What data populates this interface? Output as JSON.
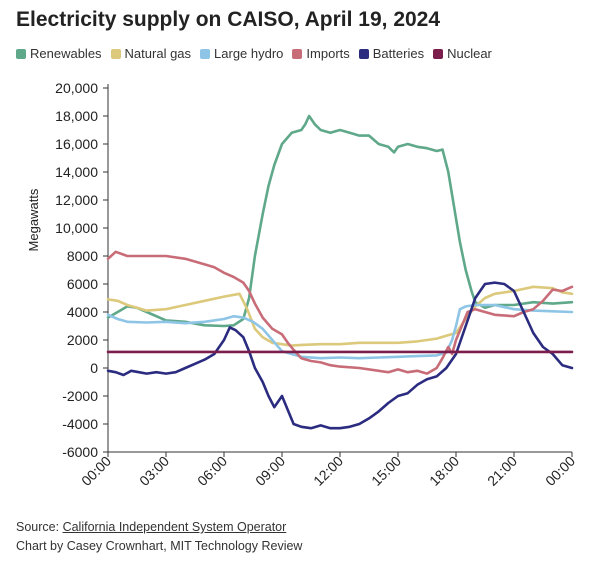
{
  "title": "Electricity supply on CAISO, April 19, 2024",
  "source_prefix": "Source: ",
  "source_link": "California Independent System Operator",
  "credit": "Chart by Casey Crownhart, MIT Technology Review",
  "chart_data": {
    "type": "line",
    "ylabel": "Megawatts",
    "xlabel": "",
    "ylim": [
      -6000,
      20000
    ],
    "xlim": [
      0,
      24
    ],
    "grid": false,
    "legend": "top-left",
    "yticks": [
      20000,
      18000,
      16000,
      14000,
      12000,
      10000,
      8000,
      6000,
      4000,
      2000,
      0,
      -2000,
      -4000,
      -6000
    ],
    "ytick_labels": [
      "20,000",
      "18,000",
      "16,000",
      "14,000",
      "12,000",
      "10,000",
      "8000",
      "6000",
      "4000",
      "2000",
      "0",
      "-2000",
      "-4000",
      "-6000"
    ],
    "xticks": [
      0,
      3,
      6,
      9,
      12,
      15,
      18,
      21,
      24
    ],
    "xtick_labels": [
      "00:00",
      "03:00",
      "06:00",
      "09:00",
      "12:00",
      "15:00",
      "18:00",
      "21:00",
      "00:00"
    ],
    "series": [
      {
        "name": "Renewables",
        "color": "#5fa88a",
        "points": [
          [
            0,
            3600
          ],
          [
            0.5,
            4000
          ],
          [
            1,
            4400
          ],
          [
            1.5,
            4300
          ],
          [
            2,
            4000
          ],
          [
            3,
            3400
          ],
          [
            4,
            3300
          ],
          [
            5,
            3050
          ],
          [
            6,
            3000
          ],
          [
            6.5,
            3050
          ],
          [
            7,
            3500
          ],
          [
            7.3,
            5000
          ],
          [
            7.6,
            8000
          ],
          [
            8,
            11000
          ],
          [
            8.3,
            13000
          ],
          [
            8.6,
            14500
          ],
          [
            9,
            16000
          ],
          [
            9.5,
            16800
          ],
          [
            10,
            17000
          ],
          [
            10.2,
            17400
          ],
          [
            10.4,
            18000
          ],
          [
            10.7,
            17400
          ],
          [
            11,
            17000
          ],
          [
            11.5,
            16800
          ],
          [
            12,
            17000
          ],
          [
            12.5,
            16800
          ],
          [
            13,
            16600
          ],
          [
            13.5,
            16600
          ],
          [
            14,
            16000
          ],
          [
            14.5,
            15800
          ],
          [
            14.8,
            15400
          ],
          [
            15,
            15800
          ],
          [
            15.5,
            16000
          ],
          [
            16,
            15800
          ],
          [
            16.5,
            15700
          ],
          [
            17,
            15500
          ],
          [
            17.3,
            15600
          ],
          [
            17.6,
            14000
          ],
          [
            17.9,
            11500
          ],
          [
            18.2,
            9000
          ],
          [
            18.5,
            7000
          ],
          [
            18.8,
            5500
          ],
          [
            19,
            4700
          ],
          [
            19.5,
            4300
          ],
          [
            20,
            4500
          ],
          [
            21,
            4500
          ],
          [
            22,
            4700
          ],
          [
            23,
            4600
          ],
          [
            24,
            4700
          ]
        ]
      },
      {
        "name": "Natural gas",
        "color": "#dcc97b",
        "points": [
          [
            0,
            4900
          ],
          [
            0.5,
            4800
          ],
          [
            1,
            4500
          ],
          [
            1.5,
            4300
          ],
          [
            2,
            4100
          ],
          [
            3,
            4200
          ],
          [
            4,
            4500
          ],
          [
            5,
            4800
          ],
          [
            6,
            5100
          ],
          [
            6.8,
            5300
          ],
          [
            7.2,
            4200
          ],
          [
            7.6,
            2800
          ],
          [
            8,
            2200
          ],
          [
            8.5,
            1800
          ],
          [
            9,
            1700
          ],
          [
            9.5,
            1600
          ],
          [
            10,
            1650
          ],
          [
            11,
            1700
          ],
          [
            12,
            1700
          ],
          [
            13,
            1800
          ],
          [
            14,
            1800
          ],
          [
            15,
            1800
          ],
          [
            16,
            1900
          ],
          [
            17,
            2100
          ],
          [
            17.5,
            2300
          ],
          [
            18,
            2500
          ],
          [
            18.5,
            3500
          ],
          [
            19,
            4400
          ],
          [
            19.5,
            5000
          ],
          [
            20,
            5300
          ],
          [
            21,
            5500
          ],
          [
            22,
            5800
          ],
          [
            23,
            5700
          ],
          [
            23.5,
            5400
          ],
          [
            24,
            5300
          ]
        ]
      },
      {
        "name": "Large hydro",
        "color": "#8ec5e6",
        "points": [
          [
            0,
            3800
          ],
          [
            0.5,
            3500
          ],
          [
            1,
            3300
          ],
          [
            2,
            3250
          ],
          [
            3,
            3300
          ],
          [
            4,
            3200
          ],
          [
            5,
            3300
          ],
          [
            6,
            3500
          ],
          [
            6.5,
            3700
          ],
          [
            7,
            3600
          ],
          [
            7.5,
            3300
          ],
          [
            8,
            2800
          ],
          [
            8.5,
            2000
          ],
          [
            9,
            1200
          ],
          [
            9.5,
            1000
          ],
          [
            10,
            800
          ],
          [
            11,
            700
          ],
          [
            12,
            750
          ],
          [
            13,
            700
          ],
          [
            14,
            750
          ],
          [
            15,
            800
          ],
          [
            16,
            850
          ],
          [
            17,
            900
          ],
          [
            17.5,
            1100
          ],
          [
            17.8,
            2000
          ],
          [
            18,
            3000
          ],
          [
            18.2,
            4200
          ],
          [
            18.5,
            4400
          ],
          [
            19,
            4500
          ],
          [
            20,
            4500
          ],
          [
            21,
            4200
          ],
          [
            22,
            4100
          ],
          [
            23,
            4050
          ],
          [
            24,
            4000
          ]
        ]
      },
      {
        "name": "Imports",
        "color": "#c86d78",
        "points": [
          [
            0,
            7800
          ],
          [
            0.4,
            8300
          ],
          [
            1,
            8000
          ],
          [
            2,
            8000
          ],
          [
            3,
            8000
          ],
          [
            4,
            7800
          ],
          [
            5,
            7400
          ],
          [
            5.5,
            7200
          ],
          [
            6,
            6800
          ],
          [
            6.5,
            6500
          ],
          [
            7,
            6100
          ],
          [
            7.3,
            5500
          ],
          [
            7.6,
            4600
          ],
          [
            8,
            3600
          ],
          [
            8.5,
            2800
          ],
          [
            9,
            2400
          ],
          [
            9.3,
            1800
          ],
          [
            9.6,
            1300
          ],
          [
            10,
            700
          ],
          [
            10.5,
            500
          ],
          [
            11,
            400
          ],
          [
            11.5,
            200
          ],
          [
            12,
            100
          ],
          [
            13,
            0
          ],
          [
            14,
            -200
          ],
          [
            14.5,
            -300
          ],
          [
            15,
            -100
          ],
          [
            15.5,
            -300
          ],
          [
            16,
            -200
          ],
          [
            16.5,
            -400
          ],
          [
            17,
            0
          ],
          [
            17.3,
            700
          ],
          [
            17.6,
            1500
          ],
          [
            17.8,
            1000
          ],
          [
            18,
            2000
          ],
          [
            18.3,
            3000
          ],
          [
            18.6,
            4000
          ],
          [
            19,
            4200
          ],
          [
            19.5,
            4000
          ],
          [
            20,
            3800
          ],
          [
            21,
            3700
          ],
          [
            21.5,
            4000
          ],
          [
            22,
            4200
          ],
          [
            22.5,
            4800
          ],
          [
            23,
            5600
          ],
          [
            23.5,
            5500
          ],
          [
            24,
            5800
          ]
        ]
      },
      {
        "name": "Batteries",
        "color": "#2b2c80",
        "points": [
          [
            0,
            -200
          ],
          [
            0.4,
            -300
          ],
          [
            0.8,
            -500
          ],
          [
            1.2,
            -200
          ],
          [
            1.6,
            -300
          ],
          [
            2,
            -400
          ],
          [
            2.5,
            -300
          ],
          [
            3,
            -400
          ],
          [
            3.5,
            -300
          ],
          [
            4,
            0
          ],
          [
            4.5,
            300
          ],
          [
            5,
            600
          ],
          [
            5.5,
            1000
          ],
          [
            6,
            2000
          ],
          [
            6.3,
            2900
          ],
          [
            6.6,
            2700
          ],
          [
            7,
            2200
          ],
          [
            7.3,
            1200
          ],
          [
            7.6,
            0
          ],
          [
            8,
            -1000
          ],
          [
            8.3,
            -2000
          ],
          [
            8.6,
            -2800
          ],
          [
            9,
            -2000
          ],
          [
            9.3,
            -3000
          ],
          [
            9.6,
            -4000
          ],
          [
            10,
            -4200
          ],
          [
            10.5,
            -4300
          ],
          [
            11,
            -4100
          ],
          [
            11.5,
            -4300
          ],
          [
            12,
            -4300
          ],
          [
            12.5,
            -4200
          ],
          [
            13,
            -4000
          ],
          [
            13.5,
            -3600
          ],
          [
            14,
            -3100
          ],
          [
            14.5,
            -2500
          ],
          [
            15,
            -2000
          ],
          [
            15.5,
            -1800
          ],
          [
            16,
            -1200
          ],
          [
            16.5,
            -800
          ],
          [
            17,
            -600
          ],
          [
            17.5,
            0
          ],
          [
            18,
            1000
          ],
          [
            18.5,
            3000
          ],
          [
            19,
            5000
          ],
          [
            19.5,
            6000
          ],
          [
            20,
            6100
          ],
          [
            20.5,
            6000
          ],
          [
            21,
            5500
          ],
          [
            21.5,
            4000
          ],
          [
            22,
            2500
          ],
          [
            22.5,
            1500
          ],
          [
            23,
            1000
          ],
          [
            23.5,
            200
          ],
          [
            24,
            0
          ]
        ]
      },
      {
        "name": "Nuclear",
        "color": "#7b1e4b",
        "points": [
          [
            0,
            1150
          ],
          [
            24,
            1150
          ]
        ]
      }
    ]
  }
}
